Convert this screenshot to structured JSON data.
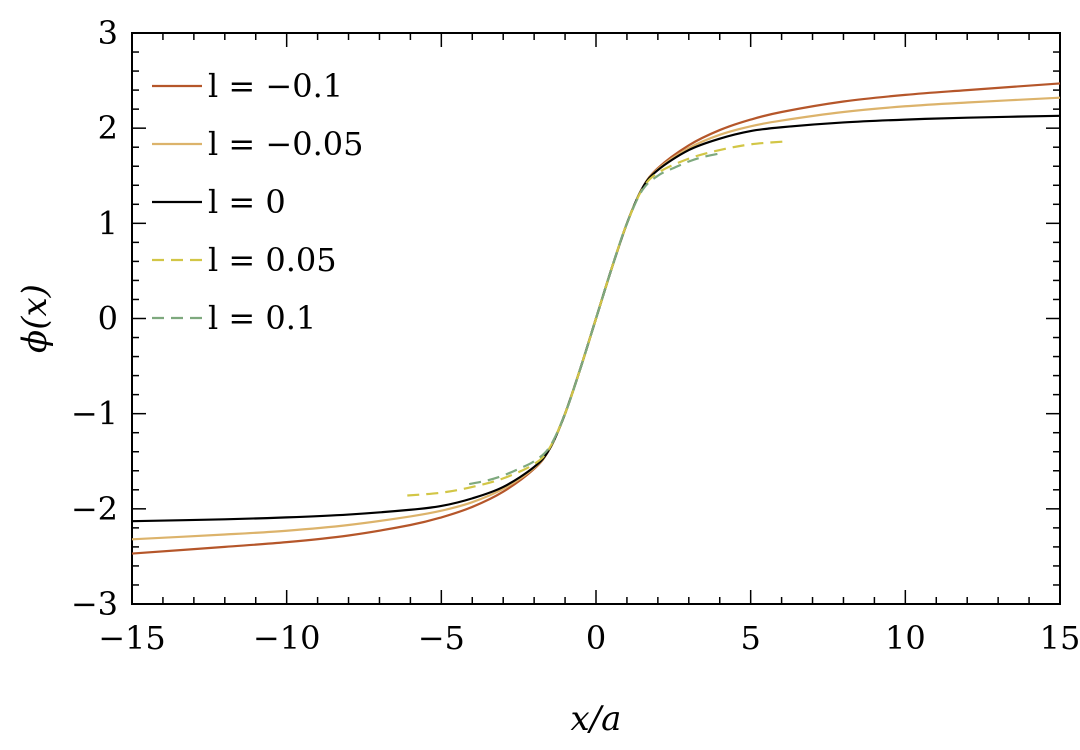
{
  "chart_data": {
    "type": "line",
    "xlabel": "x/a",
    "ylabel": "ϕ(x)",
    "xlim": [
      -15,
      15
    ],
    "ylim": [
      -3,
      3
    ],
    "x_ticks": [
      -15,
      -10,
      -5,
      0,
      5,
      10,
      15
    ],
    "x_tick_labels": [
      "−15",
      "−10",
      "−5",
      "0",
      "5",
      "10",
      "15"
    ],
    "y_ticks": [
      -3,
      -2,
      -1,
      0,
      1,
      2,
      3
    ],
    "y_tick_labels": [
      "−3",
      "−2",
      "−1",
      "0",
      "1",
      "2",
      "3"
    ],
    "grid": false,
    "legend_position": "top-left",
    "series": [
      {
        "name": "l = −0.1",
        "color": "#b5562a",
        "dash": "solid",
        "x": [
          -15,
          -12,
          -10,
          -8,
          -6,
          -5,
          -4,
          -3,
          -2,
          -1.5,
          -1,
          -0.5,
          0,
          0.5,
          1,
          1.5,
          2,
          3,
          4,
          5,
          6,
          8,
          10,
          12,
          15
        ],
        "y": [
          -2.47,
          -2.4,
          -2.35,
          -2.28,
          -2.17,
          -2.09,
          -1.98,
          -1.82,
          -1.58,
          -1.37,
          -1.0,
          -0.52,
          0,
          0.52,
          1.0,
          1.37,
          1.58,
          1.82,
          1.98,
          2.09,
          2.17,
          2.28,
          2.35,
          2.4,
          2.47
        ]
      },
      {
        "name": "l = −0.05",
        "color": "#dcb36b",
        "dash": "solid",
        "x": [
          -15,
          -12,
          -10,
          -8,
          -6,
          -5,
          -4,
          -3,
          -2,
          -1.5,
          -1,
          -0.5,
          0,
          0.5,
          1,
          1.5,
          2,
          3,
          4,
          5,
          6,
          8,
          10,
          12,
          15
        ],
        "y": [
          -2.32,
          -2.27,
          -2.23,
          -2.17,
          -2.08,
          -2.02,
          -1.93,
          -1.79,
          -1.57,
          -1.37,
          -1.0,
          -0.52,
          0,
          0.52,
          1.0,
          1.37,
          1.57,
          1.79,
          1.93,
          2.02,
          2.08,
          2.17,
          2.23,
          2.27,
          2.32
        ]
      },
      {
        "name": "l = 0",
        "color": "#000000",
        "dash": "solid",
        "x": [
          -15,
          -12,
          -10,
          -8,
          -6,
          -5,
          -4,
          -3,
          -2,
          -1.5,
          -1,
          -0.5,
          0,
          0.5,
          1,
          1.5,
          2,
          3,
          4,
          5,
          6,
          8,
          10,
          12,
          15
        ],
        "y": [
          -2.13,
          -2.11,
          -2.09,
          -2.06,
          -2.01,
          -1.97,
          -1.89,
          -1.77,
          -1.56,
          -1.37,
          -1.0,
          -0.52,
          0,
          0.52,
          1.0,
          1.37,
          1.56,
          1.77,
          1.89,
          1.97,
          2.01,
          2.06,
          2.09,
          2.11,
          2.13
        ]
      },
      {
        "name": "l = 0.05",
        "color": "#d2c646",
        "dash": "dashed",
        "x": [
          -6.1,
          -5,
          -4,
          -3,
          -2,
          -1.5,
          -1,
          -0.5,
          0,
          0.5,
          1,
          1.5,
          2,
          3,
          4,
          5,
          6.1
        ],
        "y": [
          -1.86,
          -1.83,
          -1.77,
          -1.68,
          -1.53,
          -1.36,
          -1.0,
          -0.52,
          0,
          0.52,
          1.0,
          1.36,
          1.53,
          1.68,
          1.77,
          1.83,
          1.86
        ]
      },
      {
        "name": "l = 0.1",
        "color": "#7ea97e",
        "dash": "dashed",
        "x": [
          -4.1,
          -3.5,
          -3,
          -2.5,
          -2,
          -1.5,
          -1,
          -0.5,
          0,
          0.5,
          1,
          1.5,
          2,
          2.5,
          3,
          3.5,
          4.1
        ],
        "y": [
          -1.74,
          -1.7,
          -1.65,
          -1.58,
          -1.5,
          -1.35,
          -1.0,
          -0.52,
          0,
          0.52,
          1.0,
          1.35,
          1.5,
          1.58,
          1.65,
          1.7,
          1.74
        ]
      }
    ]
  }
}
